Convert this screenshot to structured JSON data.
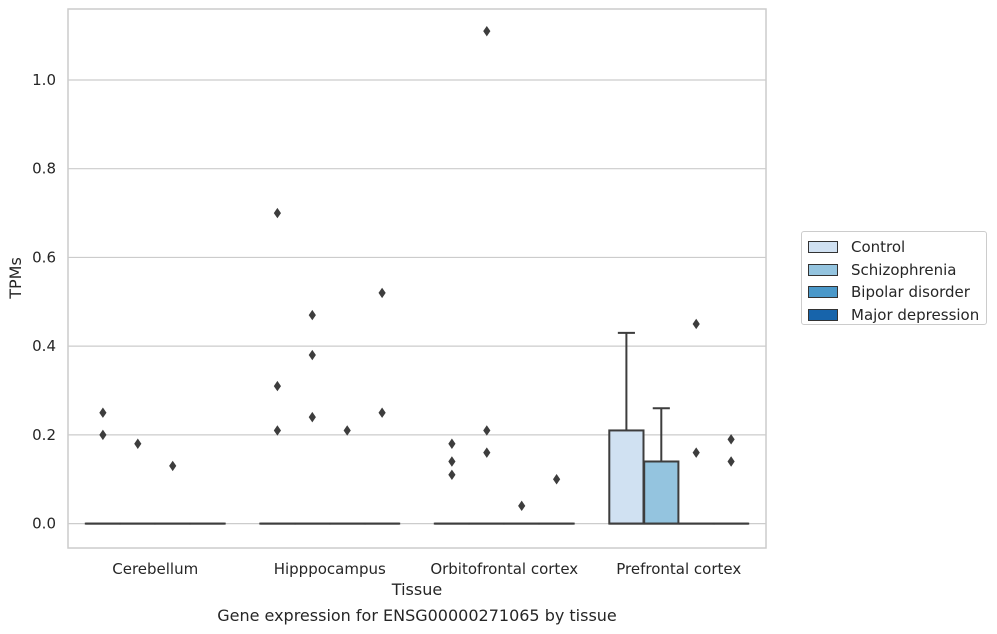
{
  "chart_data": {
    "type": "box",
    "xlabel": "Tissue",
    "ylabel": "TPMs",
    "caption": "Gene expression for ENSG00000271065 by tissue",
    "categories": [
      "Cerebellum",
      "Hipppocampus",
      "Orbitofrontal cortex",
      "Prefrontal cortex"
    ],
    "ylim": [
      -0.055,
      1.16
    ],
    "yticks": [
      0.0,
      0.2,
      0.4,
      0.6,
      0.8,
      1.0
    ],
    "ytick_labels": [
      "0.0",
      "0.2",
      "0.4",
      "0.6",
      "0.8",
      "1.0"
    ],
    "grid": "horizontal",
    "legend_position": "right",
    "series": [
      {
        "name": "Control",
        "color": "#d0e1f2",
        "boxes": [
          {
            "q1": 0,
            "median": 0,
            "q3": 0,
            "whisker_low": 0,
            "whisker_high": 0
          },
          {
            "q1": 0,
            "median": 0,
            "q3": 0,
            "whisker_low": 0,
            "whisker_high": 0
          },
          {
            "q1": 0,
            "median": 0,
            "q3": 0,
            "whisker_low": 0,
            "whisker_high": 0
          },
          {
            "q1": 0,
            "median": 0,
            "q3": 0.21,
            "whisker_low": 0,
            "whisker_high": 0.43
          }
        ],
        "outliers": [
          [
            0.25,
            0.2
          ],
          [
            0.7,
            0.31,
            0.21
          ],
          [
            0.18,
            0.14,
            0.11
          ],
          []
        ]
      },
      {
        "name": "Schizophrenia",
        "color": "#94c4df",
        "boxes": [
          {
            "q1": 0,
            "median": 0,
            "q3": 0,
            "whisker_low": 0,
            "whisker_high": 0
          },
          {
            "q1": 0,
            "median": 0,
            "q3": 0,
            "whisker_low": 0,
            "whisker_high": 0
          },
          {
            "q1": 0,
            "median": 0,
            "q3": 0,
            "whisker_low": 0,
            "whisker_high": 0
          },
          {
            "q1": 0,
            "median": 0,
            "q3": 0.14,
            "whisker_low": 0,
            "whisker_high": 0.26
          }
        ],
        "outliers": [
          [
            0.18
          ],
          [
            0.47,
            0.38,
            0.24
          ],
          [
            1.11,
            0.21,
            0.16
          ],
          []
        ]
      },
      {
        "name": "Bipolar disorder",
        "color": "#4a98c9",
        "boxes": [
          {
            "q1": 0,
            "median": 0,
            "q3": 0,
            "whisker_low": 0,
            "whisker_high": 0
          },
          {
            "q1": 0,
            "median": 0,
            "q3": 0,
            "whisker_low": 0,
            "whisker_high": 0
          },
          {
            "q1": 0,
            "median": 0,
            "q3": 0,
            "whisker_low": 0,
            "whisker_high": 0
          },
          {
            "q1": 0,
            "median": 0,
            "q3": 0,
            "whisker_low": 0,
            "whisker_high": 0
          }
        ],
        "outliers": [
          [
            0.13
          ],
          [
            0.21
          ],
          [
            0.04
          ],
          [
            0.45,
            0.16
          ]
        ]
      },
      {
        "name": "Major depression",
        "color": "#1764ab",
        "boxes": [
          {
            "q1": 0,
            "median": 0,
            "q3": 0,
            "whisker_low": 0,
            "whisker_high": 0
          },
          {
            "q1": 0,
            "median": 0,
            "q3": 0,
            "whisker_low": 0,
            "whisker_high": 0
          },
          {
            "q1": 0,
            "median": 0,
            "q3": 0,
            "whisker_low": 0,
            "whisker_high": 0
          },
          {
            "q1": 0,
            "median": 0,
            "q3": 0,
            "whisker_low": 0,
            "whisker_high": 0
          }
        ],
        "outliers": [
          [],
          [
            0.52,
            0.25
          ],
          [
            0.1
          ],
          [
            0.19,
            0.14
          ]
        ]
      }
    ]
  }
}
